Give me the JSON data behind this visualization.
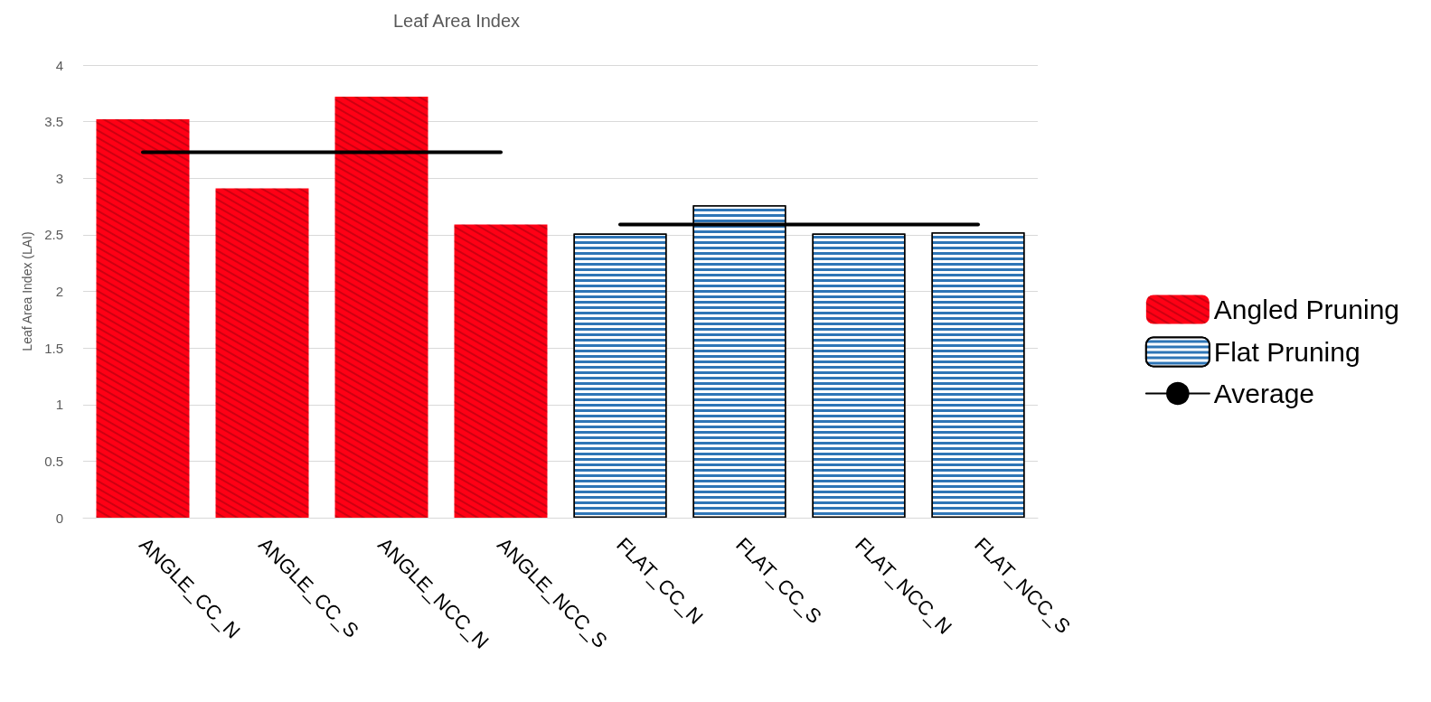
{
  "chart_data": {
    "type": "bar",
    "title": "Leaf Area Index",
    "ylabel": "Leaf Area Index (LAI)",
    "categories": [
      "ANGLE_CC_N",
      "ANGLE_CC_S",
      "ANGLE_NCC_N",
      "ANGLE_NCC_S",
      "FLAT_CC_N",
      "FLAT_CC_S",
      "FLAT_NCC_N",
      "FLAT_NCC_S"
    ],
    "series": [
      {
        "name": "Angled Pruning",
        "color": "#ff0015",
        "values": [
          3.52,
          2.91,
          3.72,
          2.59,
          null,
          null,
          null,
          null
        ]
      },
      {
        "name": "Flat Pruning",
        "color": "#2e75b6",
        "values": [
          null,
          null,
          null,
          null,
          2.51,
          2.76,
          2.51,
          2.52
        ]
      },
      {
        "name": "Average",
        "type": "line",
        "color": "#000000",
        "values": [
          3.23,
          3.23,
          3.23,
          3.23,
          null,
          null,
          null,
          null
        ]
      },
      {
        "type": "line",
        "color": "#000000",
        "values": [
          null,
          null,
          null,
          null,
          2.59,
          2.59,
          2.59,
          2.59
        ]
      }
    ],
    "ylim": [
      0,
      4
    ],
    "yticks": [
      0,
      0.5,
      1,
      1.5,
      2,
      2.5,
      3,
      3.5,
      4
    ],
    "grid": "y",
    "legend": "right",
    "marker": "none"
  }
}
